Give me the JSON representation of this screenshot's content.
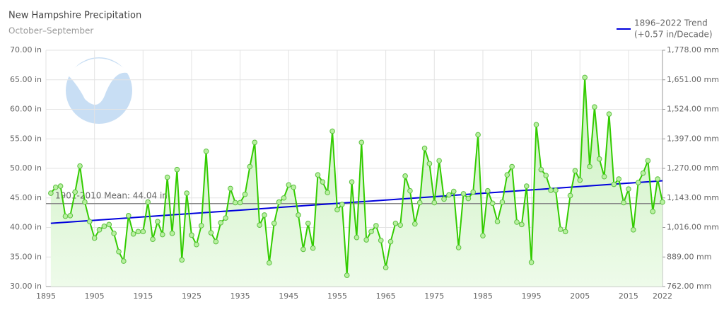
{
  "chart_data": {
    "type": "line",
    "title": "New Hampshire Precipitation",
    "subtitle": "October–September",
    "x": [
      1896,
      1897,
      1898,
      1899,
      1900,
      1901,
      1902,
      1903,
      1904,
      1905,
      1906,
      1907,
      1908,
      1909,
      1910,
      1911,
      1912,
      1913,
      1914,
      1915,
      1916,
      1917,
      1918,
      1919,
      1920,
      1921,
      1922,
      1923,
      1924,
      1925,
      1926,
      1927,
      1928,
      1929,
      1930,
      1931,
      1932,
      1933,
      1934,
      1935,
      1936,
      1937,
      1938,
      1939,
      1940,
      1941,
      1942,
      1943,
      1944,
      1945,
      1946,
      1947,
      1948,
      1949,
      1950,
      1951,
      1952,
      1953,
      1954,
      1955,
      1956,
      1957,
      1958,
      1959,
      1960,
      1961,
      1962,
      1963,
      1964,
      1965,
      1966,
      1967,
      1968,
      1969,
      1970,
      1971,
      1972,
      1973,
      1974,
      1975,
      1976,
      1977,
      1978,
      1979,
      1980,
      1981,
      1982,
      1983,
      1984,
      1985,
      1986,
      1987,
      1988,
      1989,
      1990,
      1991,
      1992,
      1993,
      1994,
      1995,
      1996,
      1997,
      1998,
      1999,
      2000,
      2001,
      2002,
      2003,
      2004,
      2005,
      2006,
      2007,
      2008,
      2009,
      2010,
      2011,
      2012,
      2013,
      2014,
      2015,
      2016,
      2017,
      2018,
      2019,
      2020,
      2021,
      2022
    ],
    "series": [
      {
        "color": "#33cc00",
        "values": [
          45.8,
          46.8,
          47.0,
          41.9,
          42.0,
          46.0,
          50.4,
          44.3,
          41.0,
          38.2,
          39.6,
          40.2,
          40.5,
          39.0,
          35.9,
          34.3,
          42.0,
          38.9,
          39.3,
          39.3,
          44.3,
          38.0,
          41.0,
          38.8,
          48.5,
          39.0,
          49.8,
          34.5,
          45.8,
          38.7,
          37.1,
          40.3,
          52.9,
          39.1,
          37.6,
          40.8,
          41.6,
          46.6,
          44.2,
          44.2,
          45.6,
          50.3,
          54.4,
          40.4,
          42.1,
          34.0,
          40.7,
          44.3,
          45.0,
          47.2,
          46.8,
          42.1,
          36.3,
          40.7,
          36.5,
          48.9,
          47.7,
          45.9,
          56.3,
          43.0,
          43.9,
          31.9,
          47.7,
          38.3,
          54.4,
          37.9,
          39.3,
          40.3,
          37.8,
          33.2,
          37.6,
          40.7,
          40.4,
          48.7,
          46.2,
          40.6,
          44.2,
          53.4,
          50.8,
          44.2,
          51.3,
          44.8,
          45.5,
          46.1,
          36.6,
          45.7,
          44.9,
          46.0,
          55.7,
          38.6,
          46.2,
          44.1,
          41.0,
          44.3,
          48.9,
          50.3,
          40.9,
          40.5,
          47.0,
          34.1,
          57.4,
          49.8,
          48.8,
          46.3,
          46.3,
          39.7,
          39.3,
          45.4,
          49.6,
          48.0,
          65.4,
          50.3,
          60.4,
          51.6,
          48.6,
          59.2,
          47.3,
          48.2,
          44.2,
          46.5,
          39.6,
          47.6,
          49.2,
          51.3,
          42.7,
          48.2,
          44.3
        ]
      },
      {
        "name": "1896–2022 Trend",
        "note": "(+0.57 in/Decade)",
        "color": "#0000dd",
        "x": [
          1896,
          2022
        ],
        "values": [
          40.7,
          47.9
        ]
      }
    ],
    "mean": {
      "label": "1901-2010 Mean: 44.04 in",
      "value": 44.04,
      "color": "#888888"
    },
    "xlim": [
      1895,
      2022
    ],
    "xticks": [
      1895,
      1905,
      1915,
      1925,
      1935,
      1945,
      1955,
      1965,
      1975,
      1985,
      1995,
      2005,
      2015,
      2022
    ],
    "ylim": [
      30,
      70
    ],
    "yticks": [
      {
        "value": 30,
        "label": "30.00 in"
      },
      {
        "value": 35,
        "label": "35.00 in"
      },
      {
        "value": 40,
        "label": "40.00 in"
      },
      {
        "value": 45,
        "label": "45.00 in"
      },
      {
        "value": 50,
        "label": "50.00 in"
      },
      {
        "value": 55,
        "label": "55.00 in"
      },
      {
        "value": 60,
        "label": "60.00 in"
      },
      {
        "value": 65,
        "label": "65.00 in"
      },
      {
        "value": 70,
        "label": "70.00 in"
      }
    ],
    "y2lim": [
      762,
      1778
    ],
    "y2ticks": [
      {
        "value": 762,
        "label": "762.00 mm"
      },
      {
        "value": 889,
        "label": "889.00 mm"
      },
      {
        "value": 1016,
        "label": "1,016.00 mm"
      },
      {
        "value": 1143,
        "label": "1,143.00 mm"
      },
      {
        "value": 1270,
        "label": "1,270.00 mm"
      },
      {
        "value": 1397,
        "label": "1,397.00 mm"
      },
      {
        "value": 1524,
        "label": "1,524.00 mm"
      },
      {
        "value": 1651,
        "label": "1,651.00 mm"
      },
      {
        "value": 1778,
        "label": "1,778.00 mm"
      }
    ],
    "grid": true
  }
}
